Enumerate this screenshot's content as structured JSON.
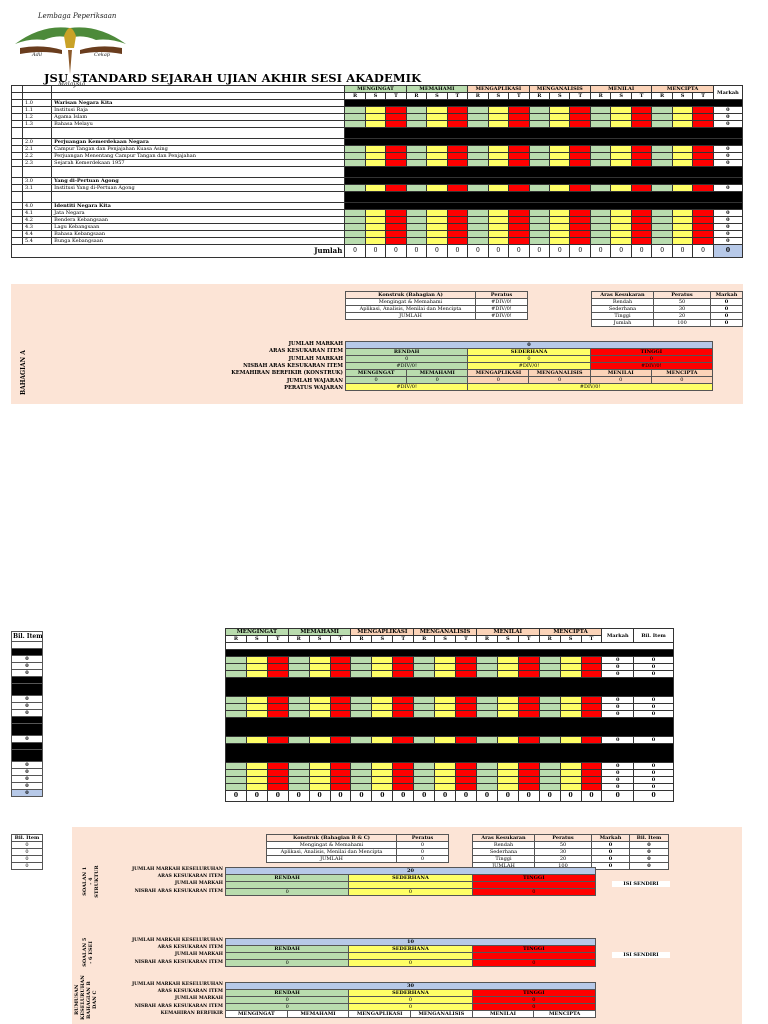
{
  "header": {
    "logo_text_top": "Lembaga Peperiksaan",
    "logo_text_bottom": "Malaysia",
    "logo_left": "Adil",
    "logo_right": "Cekap",
    "title": "JSU STANDARD SEJARAH UJIAN AKHIR SESI AKADEMIK"
  },
  "colors": {
    "green": "#b9dcae",
    "yellow": "#ffff66",
    "red": "#ff0000",
    "peach": "#fce4d6",
    "blue": "#b7c9e8"
  },
  "constructs": [
    "MENGINGAT",
    "MEMAHAMI",
    "MENGAPLIKASI",
    "MENGANALISIS",
    "MENILAI",
    "MENCIPTA"
  ],
  "rst": [
    "R",
    "S",
    "T"
  ],
  "markah_label": "Markah",
  "bil_item_label": "Bil. Item",
  "section_a": {
    "rows": [
      {
        "no": "1.0",
        "text": "Warisan Negara Kita",
        "type": "head"
      },
      {
        "no": "1.1",
        "text": "Institusi Raja",
        "type": "item",
        "mark": "0"
      },
      {
        "no": "1.2",
        "text": "Agama Islam",
        "type": "item",
        "mark": "0"
      },
      {
        "no": "1.3",
        "text": "Bahasa Melayu",
        "type": "item",
        "mark": "0"
      },
      {
        "no": "",
        "text": "",
        "type": "black"
      },
      {
        "no": "2.0",
        "text": "Perjuangan Kemerdekaan Negara",
        "type": "head"
      },
      {
        "no": "2.1",
        "text": "Campur Tangan dan Penjajahan Kuasa Asing",
        "type": "item",
        "mark": "0"
      },
      {
        "no": "2.2",
        "text": "Perjuangan Menentang Campur Tangan dan Penjajahan",
        "type": "item",
        "mark": "0"
      },
      {
        "no": "2.3",
        "text": "Sejarah Kemerdekaan 1957",
        "type": "item",
        "mark": "0"
      },
      {
        "no": "",
        "text": "",
        "type": "black"
      },
      {
        "no": "3.0",
        "text": "Yang di-Pertuan Agong",
        "type": "head"
      },
      {
        "no": "3.1",
        "text": "Institusi Yang di-Pertuan Agong",
        "type": "item",
        "mark": "0"
      },
      {
        "no": "",
        "text": "",
        "type": "black"
      },
      {
        "no": "4.0",
        "text": "Identiti Negara Kita",
        "type": "head"
      },
      {
        "no": "4.1",
        "text": "Jata Negara",
        "type": "item",
        "mark": "0"
      },
      {
        "no": "4.2",
        "text": "Bendera Kebangsaan",
        "type": "item",
        "mark": "0"
      },
      {
        "no": "4.3",
        "text": "Lagu Kebangsaan",
        "type": "item",
        "mark": "0"
      },
      {
        "no": "4.4",
        "text": "Bahasa Kebangsaan",
        "type": "item",
        "mark": "0"
      },
      {
        "no": "5.4",
        "text": "Bunga Kebangsaan",
        "type": "item",
        "mark": "0"
      }
    ],
    "jumlah_label": "Jumlah",
    "jumlah_values": [
      "0",
      "0",
      "0",
      "0",
      "0",
      "0",
      "0",
      "0",
      "0",
      "0",
      "0",
      "0",
      "0",
      "0",
      "0",
      "0",
      "0",
      "0"
    ],
    "jumlah_markah": "0",
    "konstruk_table": {
      "headers": [
        "Konstruk (Bahagian A)",
        "Peratus"
      ],
      "rows": [
        [
          "Mengingat & Memahami",
          "#DIV/0!"
        ],
        [
          "Aplikasi, Analisis, Menilai dan Mencipta",
          "#DIV/0!"
        ],
        [
          "JUMLAH",
          "#DIV/0!"
        ]
      ]
    },
    "aras_table": {
      "headers": [
        "Aras Kesukaran",
        "Peratus",
        "Markah"
      ],
      "rows": [
        [
          "Rendah",
          "50",
          "0"
        ],
        [
          "Sederhana",
          "30",
          "0"
        ],
        [
          "Tinggi",
          "20",
          "0"
        ],
        [
          "Jumlah",
          "100",
          "0"
        ]
      ]
    },
    "side_label": "BAHAGIAN A",
    "summary": {
      "labels": [
        "JUMLAH MARKAH",
        "ARAS KESUKARAN ITEM",
        "JUMLAH MARKAH",
        "NISBAH ARAS KESUKARAN ITEM",
        "KEMAHIRAN BERFIKIR (KONSTRUK)",
        "JUMLAH WAJARAN",
        "PERATUS WAJARAN"
      ],
      "total": "0",
      "aras": [
        "RENDAH",
        "SEDERHANA",
        "TINGGI"
      ],
      "aras_marks": [
        "0",
        "0",
        "0"
      ],
      "nisbah": [
        "#DIV/0!",
        "#DIV/0!",
        "#DIV/0!"
      ],
      "wajaran": [
        "0",
        "0",
        "0",
        "0",
        "0",
        "0"
      ],
      "peratus_wajaran": [
        "#DIV/0!",
        "#DIV/0!"
      ]
    }
  },
  "section_b": {
    "bil_items": [
      "0",
      "0",
      "0",
      "0",
      "0",
      "0",
      "0",
      "0",
      "0",
      "0",
      "0",
      "0",
      "0",
      "0"
    ],
    "bil_total": "0",
    "markah_col": [
      "0",
      "0",
      "0",
      "0",
      "0",
      "0",
      "0",
      "0",
      "0",
      "0",
      "0",
      "0",
      "0",
      "0"
    ],
    "bil_col": [
      "0",
      "0",
      "0",
      "0",
      "0",
      "0",
      "0",
      "0",
      "0",
      "0",
      "0",
      "0",
      "0",
      "0"
    ],
    "jumlah_values": [
      "0",
      "0",
      "0",
      "0",
      "0",
      "0",
      "0",
      "0",
      "0",
      "0",
      "0",
      "0",
      "0",
      "0",
      "0",
      "0",
      "0",
      "0",
      "0",
      "0"
    ],
    "left_bil": {
      "header": "Bil. Item",
      "values": [
        "0",
        "0",
        "0",
        "0"
      ]
    },
    "konstruk_table": {
      "headers": [
        "Konstruk (Bahagian B & C)",
        "Peratus"
      ],
      "rows": [
        [
          "Mengingat & Memahami",
          "0"
        ],
        [
          "Aplikasi, Analisis, Menilai dan Mencipta",
          "0"
        ],
        [
          "JUMLAH",
          "0"
        ]
      ]
    },
    "aras_table": {
      "headers": [
        "Aras Kesukaran",
        "Peratus",
        "Markah",
        "Bil. Item"
      ],
      "rows": [
        [
          "Rendah",
          "50",
          "0",
          "0"
        ],
        [
          "Sederhana",
          "30",
          "0",
          "0"
        ],
        [
          "Tinggi",
          "20",
          "0",
          "0"
        ],
        [
          "JUMLAH",
          "100",
          "0",
          "0"
        ]
      ]
    },
    "struktur": {
      "side": "SOALAN 1 - 4 STRUKTUR",
      "labels": [
        "JUMLAH MARKAH KESELURUHAN",
        "ARAS KESUKARAN ITEM",
        "JUMLAH MARKAH",
        "NISBAH ARAS KESUKARAN ITEM"
      ],
      "total": "20",
      "aras": [
        "RENDAH",
        "SEDERHANA",
        "TINGGI"
      ],
      "nisbah": [
        "0",
        "0",
        "0"
      ],
      "note": "ISI SENDIRI"
    },
    "esei": {
      "side": "SOALAN 5 - 6 ESEI",
      "labels": [
        "JUMLAH MARKAH KESELURUHAN",
        "ARAS KESUKARAN ITEM",
        "JUMLAH MARKAH",
        "NISBAH ARAS KESUKARAN ITEM"
      ],
      "total": "10",
      "aras": [
        "RENDAH",
        "SEDERHANA",
        "TINGGI"
      ],
      "nisbah": [
        "0",
        "0",
        "0"
      ],
      "note": "ISI SENDIRI"
    },
    "rumusan": {
      "side": "RUMUSAN KESELURUHAN BAHAGIAN B DAN C",
      "labels": [
        "JUMLAH MARKAH KESELURUHAN",
        "ARAS KESUKARAN ITEM",
        "JUMLAH MARKAH",
        "NISBAH ARAS KESUKARAN ITEM",
        "KEMAHIRAN BERFIKIR"
      ],
      "total": "30",
      "aras": [
        "RENDAH",
        "SEDERHANA",
        "TINGGI"
      ],
      "marks": [
        "0",
        "0",
        "0"
      ],
      "nisbah": [
        "0",
        "0",
        "0"
      ]
    }
  }
}
